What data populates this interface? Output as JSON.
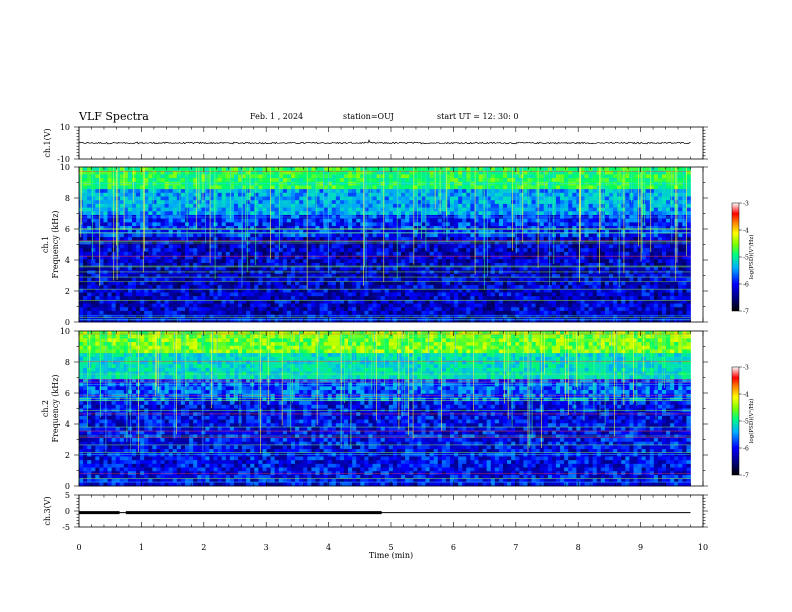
{
  "header": {
    "title": "VLF Spectra",
    "date": "Feb. 1 , 2024",
    "station": "station=OUJ",
    "start": "start UT = 12: 30: 0"
  },
  "colors": {
    "background": "#000033",
    "colormap": [
      "#000000",
      "#000080",
      "#0000ff",
      "#00a0ff",
      "#00e0c0",
      "#00ff60",
      "#a0ff00",
      "#ffff00",
      "#ff8000",
      "#ff0000",
      "#ffffff"
    ]
  },
  "chart_data": [
    {
      "type": "line",
      "ylabel": "ch.1(V)",
      "ylim": [
        -10,
        10
      ],
      "yticks": [
        "10",
        "-10"
      ],
      "xlim": [
        0,
        10
      ],
      "baseline": 0,
      "noise_amplitude": 1,
      "data_end_min": 9.8
    },
    {
      "type": "heatmap",
      "ylabel": "ch.1",
      "ylabel2": "Frequency (kHz)",
      "ylim": [
        0,
        10
      ],
      "yticks": [
        "0",
        "2",
        "4",
        "6",
        "8",
        "10"
      ],
      "xlim": [
        0,
        10
      ],
      "data_end_min": 9.8,
      "colorbar": {
        "label": "log(PSD)(V²/Hz)",
        "range": [
          -7,
          -3
        ],
        "ticks": [
          "-3",
          "-4",
          "-5",
          "-6",
          "-7"
        ]
      }
    },
    {
      "type": "heatmap",
      "ylabel": "ch.2",
      "ylabel2": "Frequency (kHz)",
      "ylim": [
        0,
        10
      ],
      "yticks": [
        "0",
        "2",
        "4",
        "6",
        "8",
        "10"
      ],
      "xlim": [
        0,
        10
      ],
      "data_end_min": 9.8,
      "colorbar": {
        "label": "log(PSD)(V²/Hz)",
        "range": [
          -7,
          -3
        ],
        "ticks": [
          "-3",
          "-4",
          "-5",
          "-6",
          "-7"
        ]
      }
    },
    {
      "type": "line",
      "ylabel": "ch.3(V)",
      "ylim": [
        -5,
        5
      ],
      "yticks": [
        "5",
        "0",
        "-5"
      ],
      "xlim": [
        0,
        10
      ],
      "xlabel": "Time (min)",
      "xticks": [
        "0",
        "1",
        "2",
        "3",
        "4",
        "5",
        "6",
        "7",
        "8",
        "9",
        "10"
      ],
      "baseline": -0.5,
      "thick_segments": [
        [
          0,
          0.65
        ],
        [
          0.75,
          4.85
        ]
      ],
      "data_end_min": 9.8
    }
  ]
}
